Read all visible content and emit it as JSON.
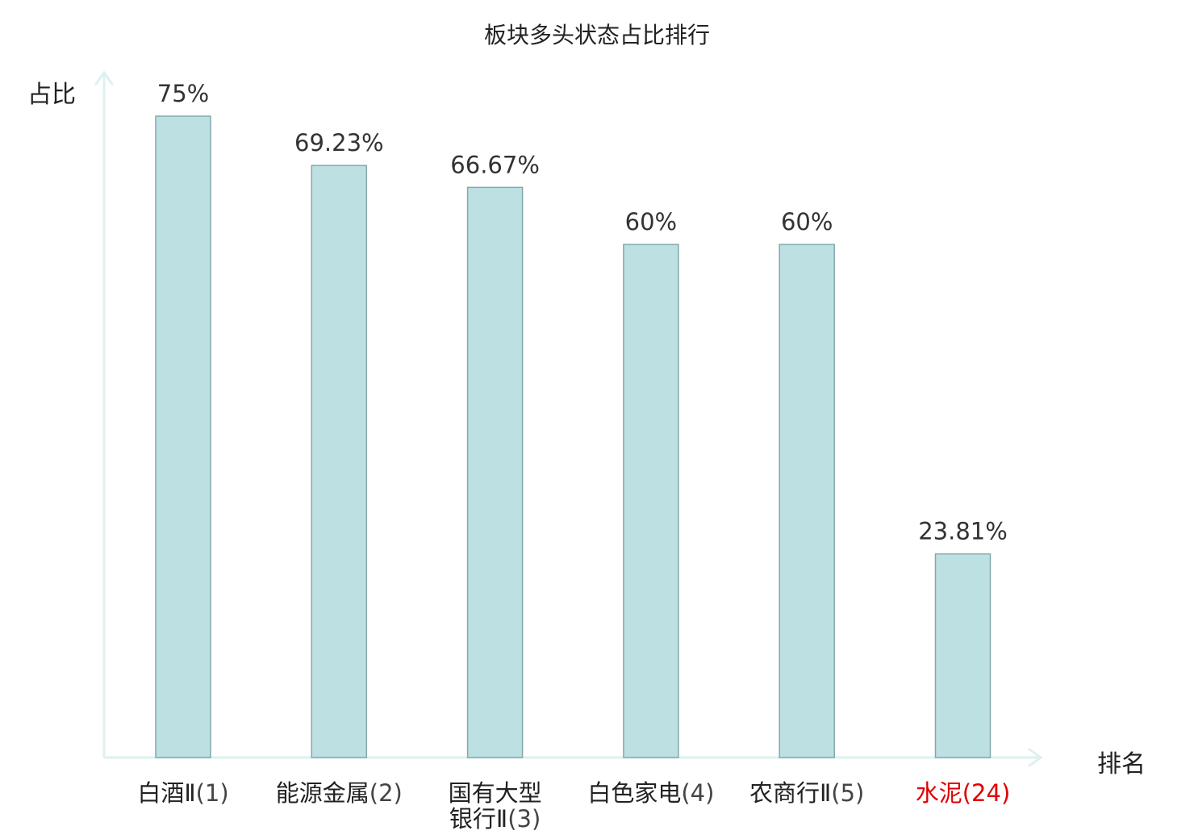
{
  "chart_data": {
    "type": "bar",
    "title": "板块多头状态占比排行",
    "xlabel": "排名",
    "ylabel": "占比",
    "ylim": [
      0,
      80
    ],
    "grid": false,
    "legend": "none",
    "categories": [
      {
        "name": "白酒Ⅱ",
        "rank": "(1)",
        "highlight": false
      },
      {
        "name": "能源金属",
        "rank": "(2)",
        "highlight": false
      },
      {
        "name": "国有大型银行Ⅱ",
        "rank": "(3)",
        "highlight": false
      },
      {
        "name": "白色家电",
        "rank": "(4)",
        "highlight": false
      },
      {
        "name": "农商行Ⅱ",
        "rank": "(5)",
        "highlight": false
      },
      {
        "name": "水泥",
        "rank": "(24)",
        "highlight": true
      }
    ],
    "values": [
      75,
      69.23,
      66.67,
      60,
      60,
      23.81
    ],
    "data_labels": [
      "75%",
      "69.23%",
      "66.67%",
      "60%",
      "60%",
      "23.81%"
    ],
    "colors": {
      "bar_fill": "#bde0e2",
      "bar_stroke": "#86a7aa",
      "axis": "#ddf1f0",
      "label": "#222222",
      "value_label": "#333333",
      "rank": "#444444",
      "highlight": "#e00000"
    }
  }
}
